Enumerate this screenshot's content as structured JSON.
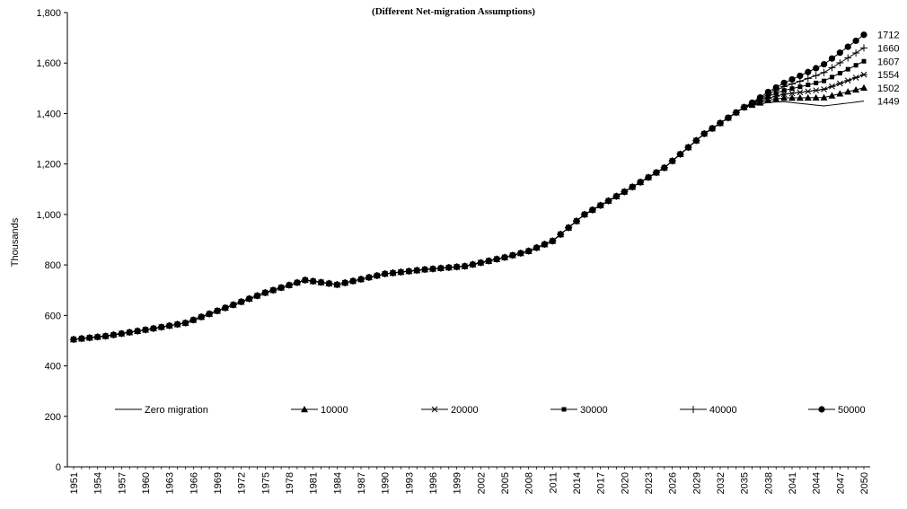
{
  "chart_data": {
    "type": "line",
    "title": "(Different Net-migration Assumptions)",
    "ylabel": "Thousands",
    "xlabel": "",
    "ylim": [
      0,
      1800
    ],
    "yticks": [
      "0",
      "200",
      "400",
      "600",
      "800",
      "1,000",
      "1,200",
      "1,400",
      "1,600",
      "1,800"
    ],
    "x_start": 1951,
    "x_end": 2050,
    "x_tick_step": 3,
    "grid": false,
    "legend_position": "bottom-inside",
    "base_years": [
      1951,
      1955,
      1960,
      1965,
      1970,
      1975,
      1980,
      1984,
      1990,
      1995,
      2000,
      2005,
      2008,
      2011,
      2015,
      2020,
      2025,
      2030,
      2035,
      2038,
      2040,
      2042,
      2045,
      2050
    ],
    "base_values": [
      505,
      518,
      543,
      570,
      630,
      690,
      740,
      722,
      765,
      782,
      795,
      830,
      855,
      895,
      1000,
      1090,
      1185,
      1320,
      1425,
      1444,
      1447,
      1440,
      1430,
      1449
    ],
    "divergence_year": 2035,
    "series": [
      {
        "name": "Zero migration",
        "marker": "none",
        "end_value": 1449,
        "end_label": "1449"
      },
      {
        "name": "10000",
        "marker": "triangle",
        "end_value": 1502,
        "end_label": "1502"
      },
      {
        "name": "20000",
        "marker": "asterisk",
        "end_value": 1554,
        "end_label": "1554"
      },
      {
        "name": "30000",
        "marker": "square",
        "end_value": 1607,
        "end_label": "1607"
      },
      {
        "name": "40000",
        "marker": "plus",
        "end_value": 1660,
        "end_label": "1660"
      },
      {
        "name": "50000",
        "marker": "circle",
        "end_value": 1712,
        "end_label": "1712"
      }
    ]
  }
}
